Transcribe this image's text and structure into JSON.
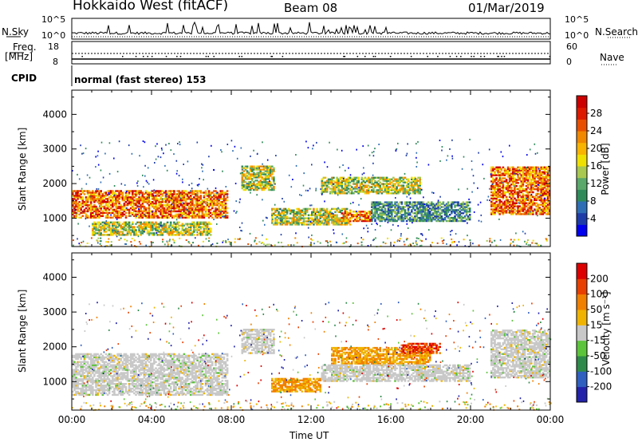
{
  "header": {
    "station": "Hokkaido West (fitACF)",
    "beam": "Beam 08",
    "date": "01/Mar/2019"
  },
  "status_panel": {
    "nsky_label": "N.Sky",
    "nsearch_label": "N.Search",
    "freq_label_line1": "Freq.",
    "freq_label_line2": "[MHz]",
    "nave_label": "Nave",
    "cpid_label": "CPID",
    "cpid_text": "normal (fast stereo) 153",
    "noise_ticks_left": [
      "10^5",
      "10^0"
    ],
    "noise_ticks_right": [
      "10^5",
      "10^0"
    ],
    "freq_ticks": [
      "18",
      "8"
    ],
    "nave_ticks": [
      "60",
      "0"
    ]
  },
  "chart_data": [
    {
      "type": "heatmap",
      "name": "power",
      "ylabel": "Slant Range [km]",
      "xlabel": "",
      "ylim": [
        180,
        4700
      ],
      "yticks": [
        1000,
        2000,
        3000,
        4000
      ],
      "xticks": [
        "00:00",
        "04:00",
        "08:00",
        "12:00",
        "16:00",
        "20:00",
        "00:00"
      ],
      "colorbar": {
        "label": "Power [dB]",
        "ticks": [
          "28",
          "24",
          "20",
          "16",
          "12",
          "8",
          "4"
        ],
        "colors": [
          "#0000ee",
          "#1e3ca8",
          "#2e6eb4",
          "#2f8a5a",
          "#5aa86a",
          "#a8c850",
          "#f0e000",
          "#f8b400",
          "#f08800",
          "#e85000",
          "#dd1a00",
          "#cc0000"
        ]
      },
      "echo_regions": [
        {
          "t0": 0.0,
          "t1": 7.8,
          "r0": 1000,
          "r1": 1800,
          "level": "strong"
        },
        {
          "t0": 1.0,
          "t1": 7.0,
          "r0": 500,
          "r1": 900,
          "level": "medium"
        },
        {
          "t0": 8.5,
          "t1": 10.2,
          "r0": 1800,
          "r1": 2500,
          "level": "medium"
        },
        {
          "t0": 10.0,
          "t1": 14.0,
          "r0": 800,
          "r1": 1300,
          "level": "medium"
        },
        {
          "t0": 13.5,
          "t1": 15.0,
          "r0": 900,
          "r1": 1200,
          "level": "strong"
        },
        {
          "t0": 12.5,
          "t1": 17.5,
          "r0": 1700,
          "r1": 2200,
          "level": "medium"
        },
        {
          "t0": 15.0,
          "t1": 20.0,
          "r0": 900,
          "r1": 1500,
          "level": "weak"
        },
        {
          "t0": 21.0,
          "t1": 24.0,
          "r0": 1100,
          "r1": 2500,
          "level": "strong"
        }
      ]
    },
    {
      "type": "heatmap",
      "name": "velocity",
      "ylabel": "Slant Range [km]",
      "xlabel": "Time UT",
      "ylim": [
        180,
        4700
      ],
      "yticks": [
        1000,
        2000,
        3000,
        4000
      ],
      "xticks": [
        "00:00",
        "04:00",
        "08:00",
        "12:00",
        "16:00",
        "20:00",
        "00:00"
      ],
      "colorbar": {
        "label": "Velocity [m s⁻¹]",
        "ticks": [
          "200",
          "100",
          "50",
          "15",
          "-15",
          "-50",
          "-100",
          "-200"
        ],
        "colors": [
          "#2222aa",
          "#2f5fbf",
          "#2e8a4a",
          "#5cc43a",
          "#c8c8c8",
          "#f0b400",
          "#f08000",
          "#e84000",
          "#dd0000"
        ]
      },
      "echo_regions": [
        {
          "t0": 0.0,
          "t1": 7.8,
          "r0": 600,
          "r1": 1800,
          "level": "grey"
        },
        {
          "t0": 8.5,
          "t1": 10.2,
          "r0": 1800,
          "r1": 2500,
          "level": "grey"
        },
        {
          "t0": 10.0,
          "t1": 12.5,
          "r0": 700,
          "r1": 1100,
          "level": "orange"
        },
        {
          "t0": 13.0,
          "t1": 18.0,
          "r0": 1500,
          "r1": 2000,
          "level": "orange"
        },
        {
          "t0": 16.5,
          "t1": 18.5,
          "r0": 1800,
          "r1": 2100,
          "level": "red"
        },
        {
          "t0": 12.5,
          "t1": 20.0,
          "r0": 1000,
          "r1": 1500,
          "level": "grey"
        },
        {
          "t0": 21.0,
          "t1": 24.0,
          "r0": 1100,
          "r1": 2500,
          "level": "grey"
        }
      ]
    }
  ]
}
